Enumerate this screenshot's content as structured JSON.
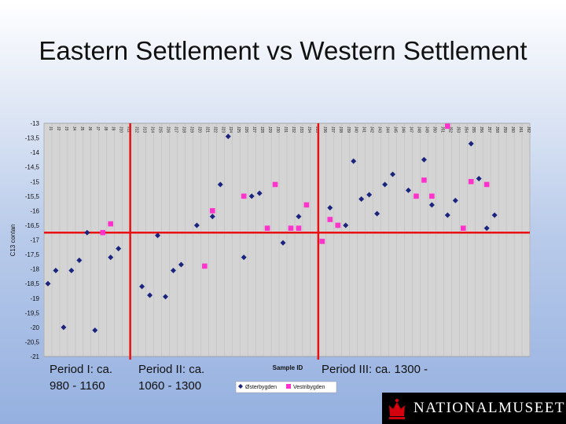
{
  "slide": {
    "title": "Eastern Settlement vs Western Settlement",
    "periods": [
      {
        "line1": "Period I: ca.",
        "line2": "980 - 1160"
      },
      {
        "line1": "Period II: ca.",
        "line2": "1060 - 1300"
      },
      {
        "line1": "Period III: ca. 1300 -",
        "line2": ""
      }
    ],
    "logo": "NATIONALMUSEET"
  },
  "chart_data": {
    "type": "scatter",
    "title": "",
    "xlabel": "Sample ID",
    "ylabel": "C13 contan",
    "ylim": [
      -21,
      -13
    ],
    "y_ticks": [
      "-13",
      "-13,5",
      "-14",
      "-14,5",
      "-15",
      "-15,5",
      "-16",
      "-16,5",
      "-17",
      "-17,5",
      "-18",
      "-18,5",
      "-19",
      "-19,5",
      "-20",
      "-20,5",
      "-21"
    ],
    "reference_lines": {
      "period_boundaries_after_sample": [
        11,
        35
      ],
      "horizontal_y": -16.75
    },
    "categories": [
      "J1",
      "J2",
      "J3",
      "J4",
      "J5",
      "J6",
      "J7",
      "J8",
      "J9",
      "J10",
      "J11",
      "J12",
      "J13",
      "J14",
      "J15",
      "J16",
      "J17",
      "J18",
      "J19",
      "J20",
      "J21",
      "J22",
      "J23",
      "J24",
      "J25",
      "J26",
      "J27",
      "J28",
      "J29",
      "J30",
      "J31",
      "J32",
      "J33",
      "J34",
      "J35",
      "J36",
      "J37",
      "J38",
      "J39",
      "J40",
      "J41",
      "J42",
      "J43",
      "J44",
      "J45",
      "J46",
      "J47",
      "J48",
      "J49",
      "J50",
      "J51",
      "J52",
      "J53",
      "J54",
      "J55",
      "J56",
      "J57",
      "J58",
      "J59",
      "J60",
      "J61",
      "J62"
    ],
    "series": [
      {
        "name": "Østerbygden",
        "color": "#1a237e",
        "marker": "diamond",
        "points": [
          [
            1,
            -18.5
          ],
          [
            2,
            -18.05
          ],
          [
            3,
            -20.0
          ],
          [
            4,
            -18.05
          ],
          [
            5,
            -17.7
          ],
          [
            6,
            -16.75
          ],
          [
            7,
            -20.1
          ],
          [
            9,
            -17.6
          ],
          [
            10,
            -17.3
          ],
          [
            13,
            -18.6
          ],
          [
            14,
            -18.9
          ],
          [
            15,
            -16.85
          ],
          [
            16,
            -18.95
          ],
          [
            17,
            -18.05
          ],
          [
            18,
            -17.85
          ],
          [
            20,
            -16.5
          ],
          [
            22,
            -16.2
          ],
          [
            23,
            -15.1
          ],
          [
            24,
            -13.45
          ],
          [
            26,
            -17.6
          ],
          [
            27,
            -15.5
          ],
          [
            28,
            -15.4
          ],
          [
            31,
            -17.1
          ],
          [
            33,
            -16.2
          ],
          [
            37,
            -15.9
          ],
          [
            38,
            -16.5
          ],
          [
            39,
            -16.5
          ],
          [
            40,
            -14.3
          ],
          [
            41,
            -15.6
          ],
          [
            42,
            -15.45
          ],
          [
            43,
            -16.1
          ],
          [
            44,
            -15.1
          ],
          [
            45,
            -14.75
          ],
          [
            47,
            -15.3
          ],
          [
            49,
            -14.25
          ],
          [
            50,
            -15.8
          ],
          [
            52,
            -16.15
          ],
          [
            53,
            -15.65
          ],
          [
            55,
            -13.7
          ],
          [
            56,
            -14.9
          ],
          [
            57,
            -16.6
          ],
          [
            58,
            -16.15
          ]
        ]
      },
      {
        "name": "Vestribygden",
        "color": "#ff33cc",
        "marker": "square",
        "points": [
          [
            8,
            -16.75
          ],
          [
            9,
            -16.45
          ],
          [
            21,
            -17.9
          ],
          [
            22,
            -16.0
          ],
          [
            26,
            -15.5
          ],
          [
            29,
            -16.6
          ],
          [
            30,
            -15.1
          ],
          [
            32,
            -16.6
          ],
          [
            33,
            -16.6
          ],
          [
            34,
            -15.8
          ],
          [
            36,
            -17.05
          ],
          [
            37,
            -16.3
          ],
          [
            38,
            -16.5
          ],
          [
            48,
            -15.5
          ],
          [
            49,
            -14.95
          ],
          [
            50,
            -15.5
          ],
          [
            52,
            -13.1
          ],
          [
            54,
            -16.6
          ],
          [
            55,
            -15.0
          ],
          [
            57,
            -15.1
          ]
        ]
      }
    ]
  }
}
